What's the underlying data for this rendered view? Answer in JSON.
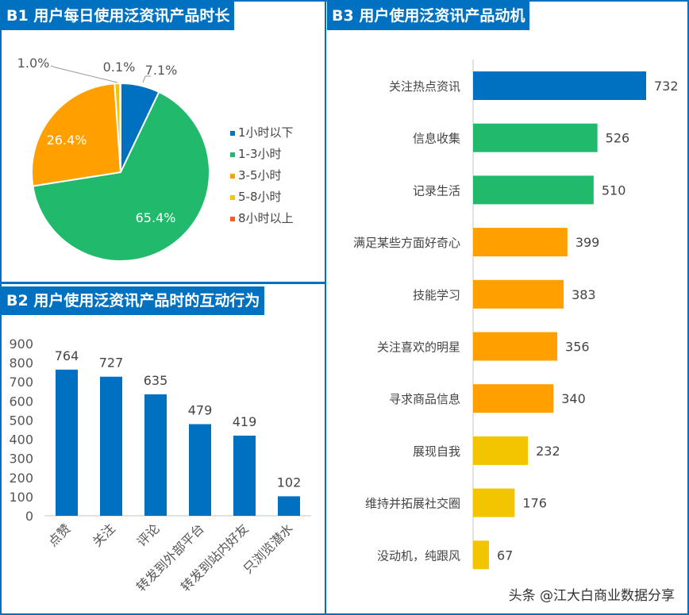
{
  "chart_data": [
    {
      "type": "pie",
      "title": "B1 用户每日使用泛资讯产品时长",
      "categories": [
        "1小时以下",
        "1-3小时",
        "3-5小时",
        "5-8小时",
        "8小时以上"
      ],
      "values": [
        7.1,
        65.4,
        26.4,
        1.0,
        0.1
      ],
      "labels": [
        "7.1%",
        "65.4%",
        "26.4%",
        "1.0%",
        "0.1%"
      ],
      "colors": [
        "#0070c0",
        "#21b96b",
        "#ffa000",
        "#f2c500",
        "#ff5a1f"
      ],
      "legend": "right"
    },
    {
      "type": "bar",
      "title": "B2 用户使用泛资讯产品时的互动行为",
      "categories": [
        "点赞",
        "关注",
        "评论",
        "转发到外部平台",
        "转发到站内好友",
        "只浏览潜水"
      ],
      "values": [
        764,
        727,
        635,
        479,
        419,
        102
      ],
      "ylim": [
        0,
        900
      ],
      "yticks": [
        "0",
        "100",
        "200",
        "300",
        "400",
        "500",
        "600",
        "700",
        "800",
        "900"
      ],
      "color": "#0070c0",
      "grid": false
    },
    {
      "type": "bar",
      "orientation": "horizontal",
      "title": "B3 用户使用泛资讯产品动机",
      "categories": [
        "关注热点资讯",
        "信息收集",
        "记录生活",
        "满足某些方面好奇心",
        "技能学习",
        "关注喜欢的明星",
        "寻求商品信息",
        "展现自我",
        "维持并拓展社交圈",
        "没动机，纯跟风"
      ],
      "values": [
        732,
        526,
        510,
        399,
        383,
        356,
        340,
        232,
        176,
        67
      ],
      "colors": [
        "#0070c0",
        "#21b96b",
        "#21b96b",
        "#ffa000",
        "#ffa000",
        "#ffa000",
        "#ffa000",
        "#f2c500",
        "#f2c500",
        "#f2c500"
      ],
      "grid": false
    }
  ],
  "watermark": "头条 @江大白商业数据分享"
}
